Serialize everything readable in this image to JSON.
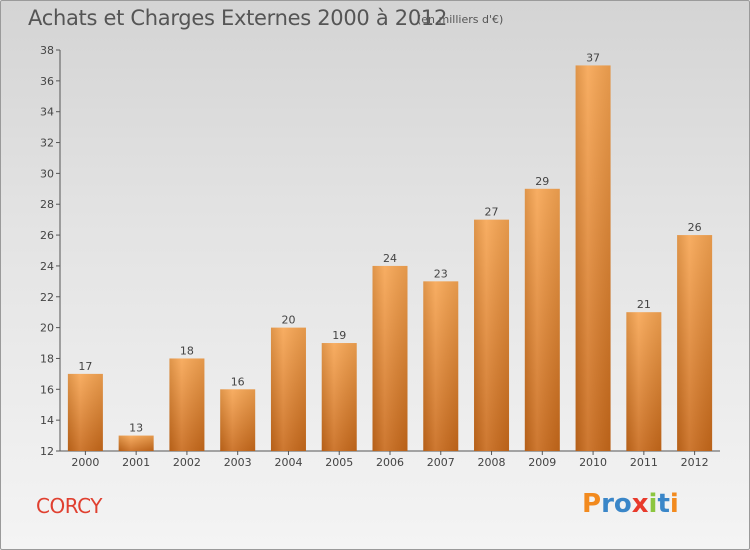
{
  "chart_data": {
    "type": "bar",
    "title": "Achats et Charges Externes 2000 à 2012",
    "unit_label": "(en milliers d'€)",
    "categories": [
      "2000",
      "2001",
      "2002",
      "2003",
      "2004",
      "2005",
      "2006",
      "2007",
      "2008",
      "2009",
      "2010",
      "2011",
      "2012"
    ],
    "values": [
      17,
      13,
      18,
      16,
      20,
      19,
      24,
      23,
      27,
      29,
      37,
      21,
      26
    ],
    "ylim": [
      12,
      38
    ],
    "yticks": [
      12,
      14,
      16,
      18,
      20,
      22,
      24,
      26,
      28,
      30,
      32,
      34,
      36,
      38
    ],
    "grid": false,
    "bar_color": "#f0923a",
    "show_value_labels": true
  },
  "commune": "CORCY",
  "logo": {
    "letters": [
      "P",
      "r",
      "o",
      "x",
      "i",
      "t",
      "i"
    ],
    "colors": [
      "#f28a1e",
      "#3a86c8",
      "#3a86c8",
      "#e83a2c",
      "#8cc63f",
      "#3a86c8",
      "#f28a1e"
    ]
  }
}
